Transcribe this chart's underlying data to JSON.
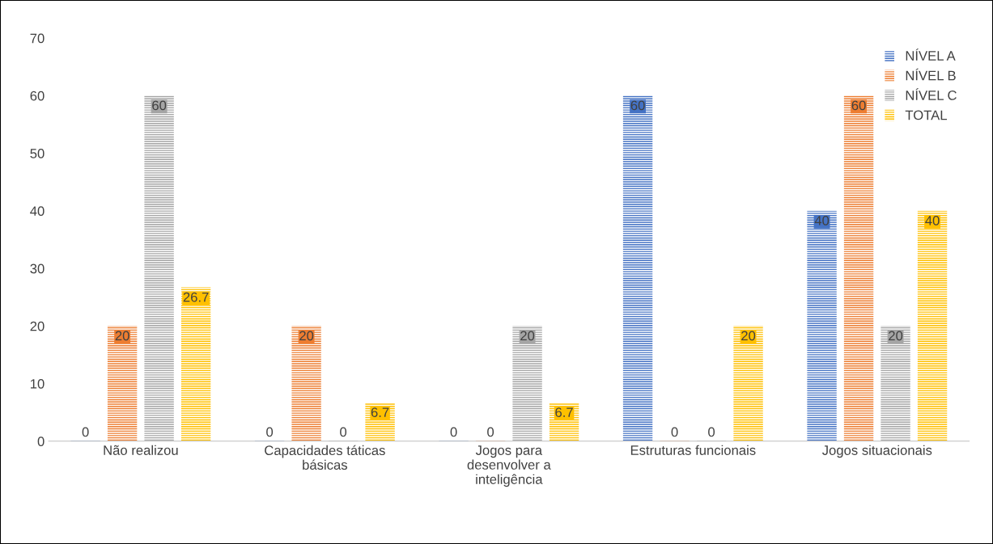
{
  "chart_data": {
    "type": "bar",
    "categories": [
      "Não realizou",
      "Capacidades táticas\nbásicas",
      "Jogos para\ndesenvolver a\ninteligência",
      "Estruturas funcionais",
      "Jogos situacionais"
    ],
    "series": [
      {
        "name": "NÍVEL A",
        "color": "#4472c4",
        "values": [
          0,
          0,
          0,
          60,
          40
        ]
      },
      {
        "name": "NÍVEL B",
        "color": "#ed7d31",
        "values": [
          20,
          20,
          0,
          0,
          60
        ]
      },
      {
        "name": "NÍVEL C",
        "color": "#a5a5a5",
        "values": [
          60,
          0,
          20,
          0,
          20
        ]
      },
      {
        "name": "TOTAL",
        "color": "#ffc000",
        "values": [
          26.7,
          6.7,
          6.7,
          20,
          40
        ]
      }
    ],
    "ylim": [
      0,
      70
    ],
    "yticks": [
      0,
      10,
      20,
      30,
      40,
      50,
      60,
      70
    ],
    "data_labels": true,
    "grid": false,
    "legend": "top right"
  }
}
